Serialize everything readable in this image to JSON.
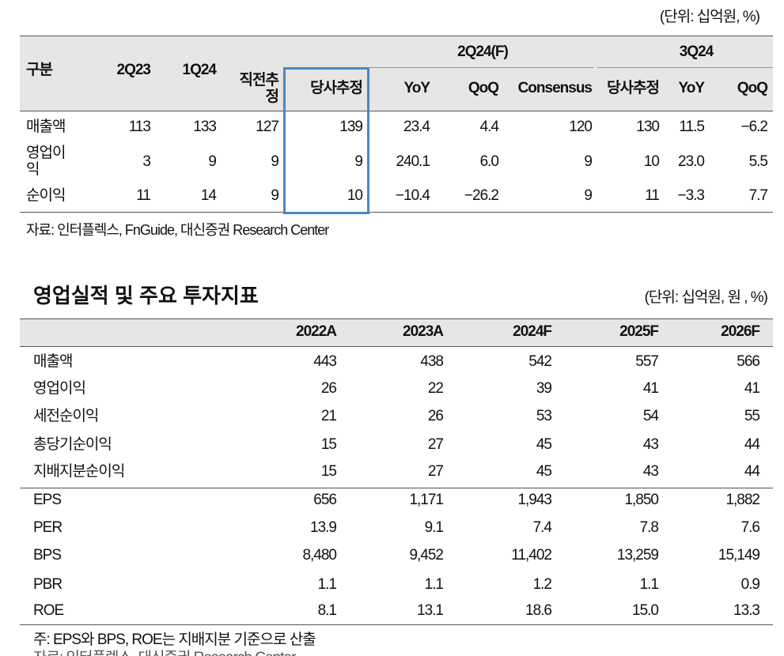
{
  "table1": {
    "unit": "(단위: 십억원, %)",
    "label_header": "구분",
    "group_headers": [
      "2Q24(F)",
      "3Q24"
    ],
    "columns": [
      "2Q23",
      "1Q24",
      "직전추정",
      "당사추정",
      "YoY",
      "QoQ",
      "Consensus",
      "당사추정",
      "YoY",
      "QoQ"
    ],
    "rows": [
      {
        "label": "매출액",
        "cells": [
          "113",
          "133",
          "127",
          "139",
          "23.4",
          "4.4",
          "120",
          "130",
          "11.5",
          "-6.2"
        ]
      },
      {
        "label": "영업이익",
        "cells": [
          "3",
          "9",
          "9",
          "9",
          "240.1",
          "6.0",
          "9",
          "10",
          "23.0",
          "5.5"
        ]
      },
      {
        "label": "순이익",
        "cells": [
          "11",
          "14",
          "9",
          "10",
          "-10.4",
          "-26.2",
          "9",
          "11",
          "-3.3",
          "7.7"
        ]
      }
    ],
    "source": "자료: 인터플렉스, FnGuide, 대신증권 Research Center"
  },
  "table2": {
    "title": "영업실적 및 주요 투자지표",
    "unit": "(단위: 십억원, 원 , %)",
    "columns": [
      "2022A",
      "2023A",
      "2024F",
      "2025F",
      "2026F"
    ],
    "rows": [
      {
        "label": "매출액",
        "cells": [
          "443",
          "438",
          "542",
          "557",
          "566"
        ]
      },
      {
        "label": "영업이익",
        "cells": [
          "26",
          "22",
          "39",
          "41",
          "41"
        ]
      },
      {
        "label": "세전순이익",
        "cells": [
          "21",
          "26",
          "53",
          "54",
          "55"
        ]
      },
      {
        "label": "총당기순이익",
        "cells": [
          "15",
          "27",
          "45",
          "43",
          "44"
        ]
      },
      {
        "label": "지배지분순이익",
        "cells": [
          "15",
          "27",
          "45",
          "43",
          "44"
        ]
      },
      {
        "label": "EPS",
        "cells": [
          "656",
          "1,171",
          "1,943",
          "1,850",
          "1,882"
        ]
      },
      {
        "label": "PER",
        "cells": [
          "13.9",
          "9.1",
          "7.4",
          "7.8",
          "7.6"
        ]
      },
      {
        "label": "BPS",
        "cells": [
          "8,480",
          "9,452",
          "11,402",
          "13,259",
          "15,149"
        ]
      },
      {
        "label": "PBR",
        "cells": [
          "1.1",
          "1.1",
          "1.2",
          "1.1",
          "0.9"
        ]
      },
      {
        "label": "ROE",
        "cells": [
          "8.1",
          "13.1",
          "18.6",
          "15.0",
          "13.3"
        ]
      }
    ],
    "note": "주: EPS와 BPS, ROE는 지배지분 기준으로 산출",
    "source": "자료: 인터플렉스, 대신증권 Research Center"
  }
}
